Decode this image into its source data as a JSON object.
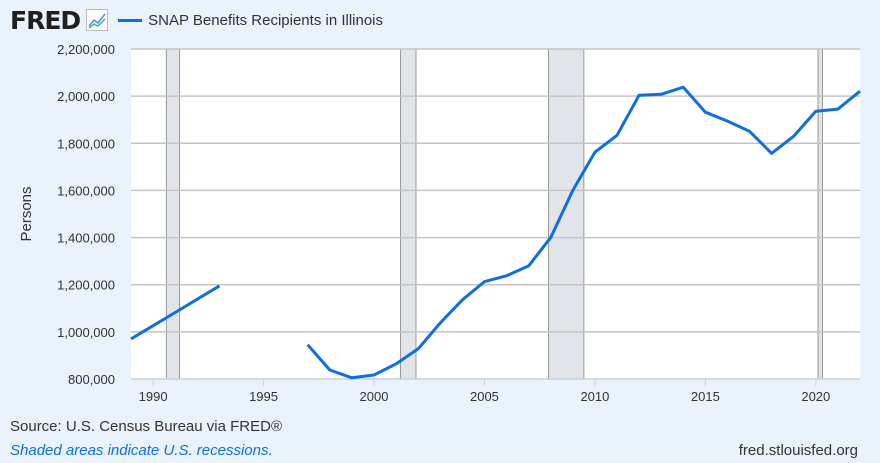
{
  "header": {
    "logo": "FRED",
    "logo_icon": "line-chart-icon",
    "legend": "SNAP Benefits Recipients in Illinois"
  },
  "footer": {
    "source": "Source: U.S. Census Bureau via FRED®",
    "note": "Shaded areas indicate U.S. recessions.",
    "site": "fred.stlouisfed.org"
  },
  "chart_data": {
    "type": "line",
    "title": "",
    "ylabel": "Persons",
    "xlabel": "",
    "xlim": [
      1989,
      2022
    ],
    "ylim": [
      800000,
      2200000
    ],
    "grid": true,
    "legend_placement": "top-left",
    "line_color": "#0f6fde",
    "recession_color": "#e1e5ea",
    "x_ticks": [
      1990,
      1995,
      2000,
      2005,
      2010,
      2015,
      2020
    ],
    "y_ticks": [
      800000,
      1000000,
      1200000,
      1400000,
      1600000,
      1800000,
      2000000,
      2200000
    ],
    "y_tick_labels": [
      "800,000",
      "1,000,000",
      "1,200,000",
      "1,400,000",
      "1,600,000",
      "1,800,000",
      "2,000,000",
      "2,200,000"
    ],
    "recessions": [
      [
        1990.6,
        1991.2
      ],
      [
        2001.2,
        2001.9
      ],
      [
        2007.9,
        2009.5
      ],
      [
        2020.1,
        2020.3
      ]
    ],
    "series": [
      {
        "name": "SNAP Benefits Recipients in Illinois",
        "x": [
          1989,
          1990,
          1991,
          1992,
          1993,
          1994,
          1995,
          1996,
          1997,
          1998,
          1999,
          2000,
          2001,
          2002,
          2003,
          2004,
          2005,
          2006,
          2007,
          2008,
          2009,
          2010,
          2011,
          2012,
          2013,
          2014,
          2015,
          2016,
          2017,
          2018,
          2019,
          2020,
          2021,
          2022
        ],
        "values": [
          970000,
          1026000,
          1082000,
          1139000,
          1195000,
          null,
          null,
          null,
          945000,
          838000,
          805000,
          817000,
          864000,
          928000,
          1038000,
          1136000,
          1213000,
          1238000,
          1280000,
          1400000,
          1600000,
          1762000,
          1834000,
          2004000,
          2008000,
          2038000,
          1932000,
          1894000,
          1851000,
          1757000,
          1830000,
          1936000,
          1945000,
          2021000
        ]
      }
    ]
  }
}
